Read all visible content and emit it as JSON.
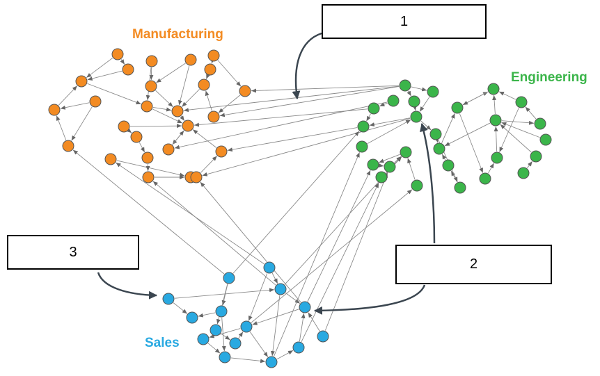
{
  "groups": {
    "manufacturing": {
      "label": "Manufacturing",
      "color": "#F38B22"
    },
    "engineering": {
      "label": "Engineering",
      "color": "#3BB54A"
    },
    "sales": {
      "label": "Sales",
      "color": "#29A9E1"
    }
  },
  "callouts": [
    {
      "id": "callout-1",
      "label": "1"
    },
    {
      "id": "callout-2",
      "label": "2"
    },
    {
      "id": "callout-3",
      "label": "3"
    }
  ],
  "style": {
    "edge_color": "#8a8a8a",
    "node_stroke": "#555555",
    "callout_arrow_color": "#3b4650"
  }
}
